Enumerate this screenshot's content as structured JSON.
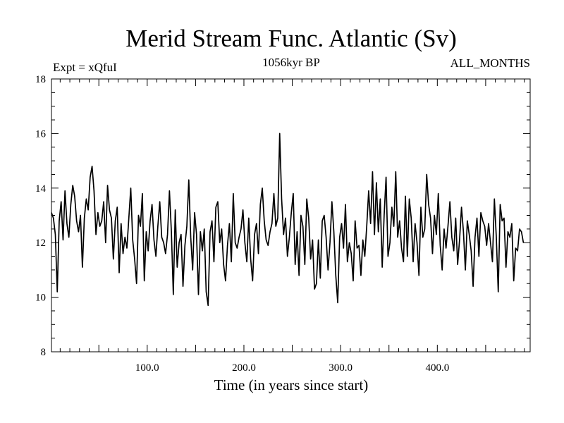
{
  "chart_data": {
    "type": "line",
    "title": "Merid Stream Func. Atlantic (Sv)",
    "subtitle": "1056kyr BP",
    "left_label": "Expt = xQfuI",
    "right_label": "ALL_MONTHS",
    "xlabel": "Time (in years since start)",
    "ylabel": "",
    "xlim": [
      1,
      496
    ],
    "ylim": [
      8,
      18
    ],
    "xticks": [
      100,
      200,
      300,
      400
    ],
    "xtick_labels": [
      "100.0",
      "200.0",
      "300.0",
      "400.0"
    ],
    "yticks": [
      8,
      10,
      12,
      14,
      16,
      18
    ],
    "ytick_labels": [
      "8",
      "10",
      "12",
      "14",
      "16",
      "18"
    ],
    "grid": false,
    "series": [
      {
        "name": "Merid Stream Func. Atlantic",
        "x_start": 1,
        "x_step": 2,
        "values": [
          13.1,
          12.9,
          12.3,
          10.2,
          12.8,
          13.5,
          12.1,
          13.9,
          12.7,
          12.2,
          13.4,
          14.1,
          13.7,
          12.8,
          12.4,
          13.0,
          11.1,
          12.9,
          13.6,
          13.2,
          14.4,
          14.8,
          13.9,
          12.3,
          13.1,
          12.6,
          12.8,
          13.5,
          12.0,
          14.1,
          13.2,
          12.9,
          11.4,
          12.8,
          13.3,
          10.9,
          12.7,
          11.6,
          12.2,
          11.8,
          12.9,
          14.0,
          12.1,
          11.4,
          10.5,
          13.0,
          12.6,
          13.8,
          10.6,
          12.4,
          11.7,
          12.8,
          13.4,
          12.1,
          11.5,
          12.6,
          13.5,
          12.2,
          12.0,
          11.6,
          12.3,
          13.9,
          12.4,
          10.1,
          13.2,
          11.1,
          12.0,
          12.3,
          10.4,
          11.9,
          12.6,
          14.3,
          12.2,
          11.0,
          13.1,
          12.3,
          10.1,
          12.4,
          11.7,
          12.5,
          10.2,
          9.7,
          12.4,
          12.8,
          11.3,
          13.3,
          13.5,
          12.0,
          12.5,
          11.2,
          10.6,
          11.9,
          12.7,
          11.3,
          13.8,
          12.0,
          11.8,
          12.2,
          12.5,
          13.2,
          12.0,
          11.3,
          12.9,
          11.4,
          10.6,
          12.3,
          12.7,
          11.6,
          13.4,
          14.0,
          12.8,
          12.1,
          11.9,
          12.4,
          12.7,
          13.8,
          12.6,
          12.9,
          16.0,
          13.6,
          12.3,
          12.9,
          11.5,
          12.2,
          13.1,
          13.8,
          11.2,
          12.4,
          10.8,
          13.0,
          12.6,
          11.2,
          13.6,
          12.9,
          11.4,
          12.1,
          10.3,
          10.5,
          12.1,
          10.7,
          12.8,
          13.0,
          12.2,
          11.0,
          12.0,
          13.5,
          12.4,
          10.8,
          9.8,
          12.2,
          12.7,
          11.8,
          13.4,
          11.3,
          12.0,
          11.6,
          10.6,
          12.8,
          11.8,
          11.9,
          10.8,
          12.1,
          11.5,
          12.6,
          13.9,
          12.7,
          14.6,
          12.3,
          14.2,
          12.4,
          13.6,
          11.1,
          13.0,
          14.4,
          11.5,
          12.0,
          13.3,
          12.6,
          14.6,
          12.2,
          12.8,
          11.8,
          11.3,
          13.7,
          11.5,
          13.6,
          12.9,
          11.3,
          12.7,
          12.0,
          10.8,
          13.3,
          12.2,
          12.5,
          14.5,
          13.4,
          12.9,
          11.6,
          13.0,
          12.3,
          13.8,
          11.9,
          11.0,
          12.5,
          11.8,
          12.6,
          13.5,
          12.2,
          11.7,
          12.9,
          11.2,
          12.1,
          13.3,
          12.4,
          11.0,
          12.8,
          12.3,
          11.7,
          10.4,
          12.2,
          12.9,
          11.5,
          13.1,
          12.8,
          12.6,
          11.9,
          12.7,
          12.0,
          11.3,
          13.6,
          12.2,
          10.2,
          13.4,
          12.8,
          12.9,
          11.1,
          12.4,
          12.2,
          12.7,
          10.6,
          11.8,
          11.7,
          12.5,
          12.4,
          12.0
        ]
      }
    ]
  }
}
